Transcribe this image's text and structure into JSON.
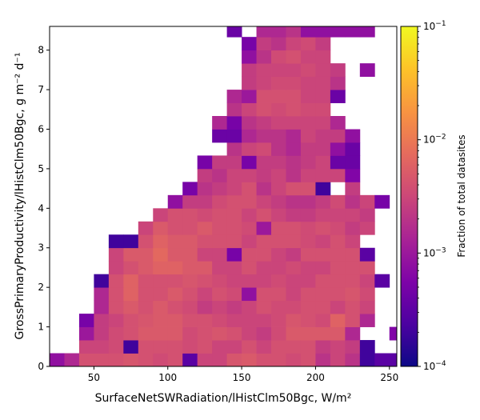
{
  "chart_data": {
    "type": "heatmap",
    "xlabel": "SurfaceNetSWRadiation/lHistClm50Bgc,  W/m²",
    "ylabel": "GrossPrimaryProductivity/lHistClm50Bgc,  g m⁻² d⁻¹",
    "xlim": [
      20,
      255
    ],
    "ylim": [
      0,
      8.6
    ],
    "x_ticks": [
      50,
      100,
      150,
      200,
      250
    ],
    "y_ticks": [
      0,
      1,
      2,
      3,
      4,
      5,
      6,
      7,
      8
    ],
    "bin_width_x": 10,
    "bin_height_y": 0.3333,
    "x_start": 20,
    "colormap": "plasma",
    "colorbar": {
      "label": "Fraction of total datasites",
      "scale": "log",
      "range": [
        0.0001,
        0.1
      ],
      "ticks": [
        {
          "value": 0.0001,
          "base": "10",
          "exp": "−4"
        },
        {
          "value": 0.001,
          "base": "10",
          "exp": "−3"
        },
        {
          "value": 0.01,
          "base": "10",
          "exp": "−2"
        },
        {
          "value": 0.1,
          "base": "10",
          "exp": "−1"
        }
      ]
    },
    "rows": [
      {
        "y": 0.167,
        "xs": 20,
        "v": [
          0.0008,
          0.0015,
          0.004,
          0.004,
          0.004,
          0.0045,
          0.004,
          0.0035,
          0.004,
          0.0003,
          0.003,
          0.003,
          0.0045,
          0.005,
          0.004,
          0.004,
          0.0035,
          0.004,
          0.002,
          0.003,
          0.002,
          0.0002,
          0.0003,
          0.0003
        ]
      },
      {
        "y": 0.5,
        "xs": 40,
        "v": [
          0.003,
          0.003,
          0.0035,
          0.0002,
          0.004,
          0.004,
          0.004,
          0.0035,
          0.004,
          0.003,
          0.003,
          0.004,
          0.003,
          0.004,
          0.004,
          0.004,
          0.0025,
          0.003,
          0.0025,
          0.0002
        ]
      },
      {
        "y": 0.833,
        "xs": 40,
        "v": [
          0.001,
          0.0025,
          0.0035,
          0.004,
          0.005,
          0.005,
          0.005,
          0.0035,
          0.004,
          0.0045,
          0.004,
          0.003,
          0.0025,
          0.0035,
          0.005,
          0.005,
          0.005,
          0.005,
          0.0015,
          0,
          0,
          0.0006
        ]
      },
      {
        "y": 1.167,
        "xs": 40,
        "v": [
          0.0005,
          0.0025,
          0.003,
          0.004,
          0.0045,
          0.005,
          0.005,
          0.004,
          0.004,
          0.0035,
          0.003,
          0.003,
          0.003,
          0.0035,
          0.0045,
          0.004,
          0.0035,
          0.006,
          0.004,
          0.0015,
          0,
          0,
          0.0006
        ]
      },
      {
        "y": 1.5,
        "xs": 50,
        "v": [
          0.0015,
          0.004,
          0.005,
          0.004,
          0.005,
          0.004,
          0.0035,
          0.0025,
          0.003,
          0.0025,
          0.003,
          0.004,
          0.0035,
          0.0035,
          0.004,
          0.004,
          0.003,
          0.004,
          0.003
        ]
      },
      {
        "y": 1.833,
        "xs": 50,
        "v": [
          0.0015,
          0.004,
          0.006,
          0.004,
          0.004,
          0.005,
          0.004,
          0.003,
          0.004,
          0.0035,
          0.0008,
          0.004,
          0.004,
          0.003,
          0.004,
          0.004,
          0.004,
          0.0045,
          0.0035
        ]
      },
      {
        "y": 2.167,
        "xs": 50,
        "v": [
          0.0002,
          0.004,
          0.006,
          0.004,
          0.004,
          0.004,
          0.0045,
          0.004,
          0.0035,
          0.003,
          0.003,
          0.003,
          0.0035,
          0.003,
          0.003,
          0.004,
          0.004,
          0.004,
          0.003,
          0.0003
        ]
      },
      {
        "y": 2.5,
        "xs": 60,
        "v": [
          0.003,
          0.004,
          0.005,
          0.006,
          0.006,
          0.005,
          0.005,
          0.003,
          0.003,
          0.004,
          0.003,
          0.003,
          0.0035,
          0.003,
          0.003,
          0.004,
          0.004,
          0.004
        ]
      },
      {
        "y": 2.833,
        "xs": 60,
        "v": [
          0.003,
          0.005,
          0.005,
          0.007,
          0.005,
          0.005,
          0.003,
          0.003,
          0.0005,
          0.004,
          0.004,
          0.003,
          0.0025,
          0.004,
          0.004,
          0.004,
          0.004,
          0.0003
        ]
      },
      {
        "y": 3.167,
        "xs": 60,
        "v": [
          0.0002,
          0.0002,
          0.004,
          0.006,
          0.005,
          0.005,
          0.004,
          0.004,
          0.004,
          0.003,
          0.004,
          0.004,
          0.004,
          0.0035,
          0.003,
          0.004,
          0.003
        ]
      },
      {
        "y": 3.5,
        "xs": 80,
        "v": [
          0.003,
          0.005,
          0.004,
          0.004,
          0.005,
          0.004,
          0.004,
          0.0035,
          0.001,
          0.004,
          0.004,
          0.0035,
          0.004,
          0.0035,
          0.0025,
          0.003
        ]
      },
      {
        "y": 3.833,
        "xs": 90,
        "v": [
          0.003,
          0.004,
          0.004,
          0.0035,
          0.004,
          0.004,
          0.003,
          0.004,
          0.003,
          0.0025,
          0.0025,
          0.003,
          0.003,
          0.003,
          0.0025
        ]
      },
      {
        "y": 4.167,
        "xs": 100,
        "v": [
          0.0008,
          0.0025,
          0.0025,
          0.0035,
          0.004,
          0.004,
          0.003,
          0.0025,
          0.002,
          0.002,
          0.0025,
          0.0035,
          0.002,
          0.003,
          0.0005
        ]
      },
      {
        "y": 4.5,
        "xs": 110,
        "v": [
          0.0005,
          0.002,
          0.0025,
          0.003,
          0.004,
          0.002,
          0.003,
          0.004,
          0.004,
          0.0002,
          0,
          0.0025
        ]
      },
      {
        "y": 4.833,
        "xs": 120,
        "v": [
          0.0025,
          0.002,
          0.003,
          0.003,
          0.0025,
          0.003,
          0.002,
          0.003,
          0.003,
          0.003,
          0.0006
        ]
      },
      {
        "y": 5.167,
        "xs": 120,
        "v": [
          0.0005,
          0.0025,
          0.0025,
          0.0005,
          0.0025,
          0.0025,
          0.002,
          0.0025,
          0.003,
          0.0004,
          0.0004
        ]
      },
      {
        "y": 5.5,
        "xs": 140,
        "v": [
          0.002,
          0.003,
          0.0035,
          0.002,
          0.0015,
          0.0025,
          0.0025,
          0.0008,
          0.0004
        ]
      },
      {
        "y": 5.833,
        "xs": 130,
        "v": [
          0.0004,
          0.0004,
          0.0015,
          0.002,
          0.002,
          0.0015,
          0.003,
          0.0025,
          0.0025,
          0.0008
        ]
      },
      {
        "y": 6.167,
        "xs": 130,
        "v": [
          0.0015,
          0.0005,
          0.002,
          0.0025,
          0.003,
          0.003,
          0.003,
          0.003,
          0.0015
        ]
      },
      {
        "y": 6.5,
        "xs": 140,
        "v": [
          0.002,
          0.003,
          0.004,
          0.0035,
          0.004,
          0.0035,
          0.0035
        ]
      },
      {
        "y": 6.833,
        "xs": 140,
        "v": [
          0.0015,
          0.001,
          0.004,
          0.004,
          0.004,
          0.003,
          0.003,
          0.0004
        ]
      },
      {
        "y": 7.167,
        "xs": 150,
        "v": [
          0.0025,
          0.003,
          0.0035,
          0.0035,
          0.003,
          0.003,
          0.002
        ]
      },
      {
        "y": 7.5,
        "xs": 150,
        "v": [
          0.0025,
          0.003,
          0.003,
          0.003,
          0.0035,
          0.003,
          0.0025,
          0,
          0.0008
        ]
      },
      {
        "y": 7.833,
        "xs": 150,
        "v": [
          0.0008,
          0.002,
          0.0035,
          0.004,
          0.003,
          0.003
        ]
      },
      {
        "y": 8.167,
        "xs": 150,
        "v": [
          0.0005,
          0.0025,
          0.002,
          0.003,
          0.0035,
          0.0025
        ]
      },
      {
        "y": 8.5,
        "xs": 140,
        "v": [
          0.0004,
          0,
          0.0015,
          0.0015,
          0.002,
          0.0008,
          0.0008,
          0.0008,
          0.0008,
          0.0008
        ]
      }
    ]
  }
}
